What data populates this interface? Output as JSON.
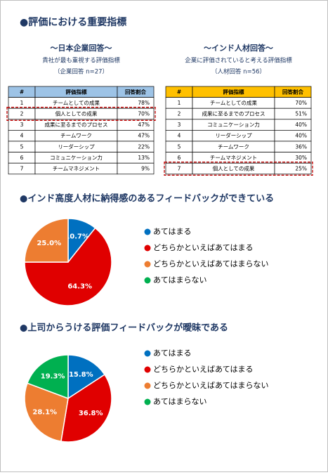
{
  "header": {
    "title": "●評価における重要指標"
  },
  "tables": [
    {
      "heading": "～日本企業回答～",
      "subheading": "貴社が最も重視する評価指標",
      "sample": "（企業回答 n=27）",
      "header_color": "#9dc3e6",
      "columns": [
        "#",
        "評価指標",
        "回答割合"
      ],
      "rows": [
        [
          "1",
          "チームとしての成果",
          "78%"
        ],
        [
          "2",
          "個人としての成果",
          "70%"
        ],
        [
          "3",
          "成果に至るまでのプロセス",
          "47%"
        ],
        [
          "4",
          "チームワーク",
          "47%"
        ],
        [
          "5",
          "リーダーシップ",
          "22%"
        ],
        [
          "6",
          "コミュニケーション力",
          "13%"
        ],
        [
          "7",
          "チームマネジメント",
          "9%"
        ]
      ],
      "highlight_row": 1
    },
    {
      "heading": "～インド人材回答～",
      "subheading": "企業に評価されていると考える評価指標",
      "sample": "（人材回答 n=56）",
      "header_color": "#ffc000",
      "columns": [
        "#",
        "評価指標",
        "回答割合"
      ],
      "rows": [
        [
          "1",
          "チームとしての成果",
          "70%"
        ],
        [
          "2",
          "成果に至るまでのプロセス",
          "51%"
        ],
        [
          "3",
          "コミュニケーション力",
          "40%"
        ],
        [
          "4",
          "リーダーシップ",
          "40%"
        ],
        [
          "5",
          "チームワーク",
          "36%"
        ],
        [
          "6",
          "チームマネジメント",
          "30%"
        ],
        [
          "7",
          "個人としての成果",
          "25%"
        ]
      ],
      "highlight_row": 6
    }
  ],
  "chart_data": [
    {
      "type": "pie",
      "title": "●インド高度人材に納得感のあるフィードバックができている",
      "categories": [
        "あてはまる",
        "どちらかといえばあてはまる",
        "どちらかといえばあてはまらない",
        "あてはまらない"
      ],
      "values": [
        10.7,
        64.3,
        25,
        0
      ],
      "value_labels": [
        "10.7%",
        "64.3%",
        "25.0%",
        null
      ],
      "colors": [
        "#0070c0",
        "#e00000",
        "#ed7d31",
        "#00b050"
      ],
      "label_color": "#ffffff"
    },
    {
      "type": "pie",
      "title": "●上司からうける評価フィードバックが曖昧である",
      "categories": [
        "あてはまる",
        "どちらかといえばあてはまる",
        "どちらかといえばあてはまらない",
        "あてはまらない"
      ],
      "values": [
        15.8,
        36.8,
        28.1,
        19.3
      ],
      "value_labels": [
        "15.8%",
        "36.8%",
        "28.1%",
        "19.3%"
      ],
      "colors": [
        "#0070c0",
        "#e00000",
        "#ed7d31",
        "#00b050"
      ],
      "label_color": "#ffffff"
    }
  ]
}
